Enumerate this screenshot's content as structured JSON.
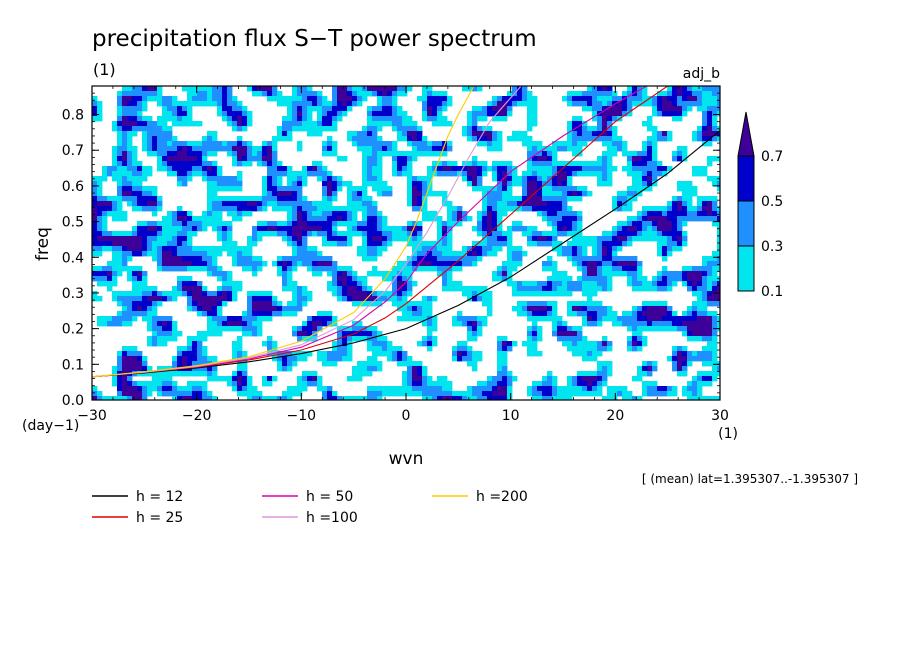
{
  "chart_data": {
    "type": "heatmap",
    "title": "precipitation flux S−T power spectrum",
    "subtitle_left": "(1)",
    "subtitle_right": "adj_b",
    "xlabel": "wvn",
    "ylabel": "freq",
    "x_unit": "(1)",
    "y_unit": "(day−1)",
    "xlim": [
      -30,
      30
    ],
    "ylim": [
      0,
      0.88
    ],
    "x_ticks": [
      -30,
      -20,
      -10,
      0,
      10,
      20,
      30
    ],
    "y_ticks": [
      0.0,
      0.1,
      0.2,
      0.3,
      0.4,
      0.5,
      0.6,
      0.7,
      0.8
    ],
    "y_tick_labels": [
      "0.0",
      "0.1",
      "0.2",
      "0.3",
      "0.4",
      "0.5",
      "0.6",
      "0.7",
      "0.8"
    ],
    "note": "[ (mean) lat=1.395307..-1.395307 ]",
    "colorbar": {
      "levels": [
        0.1,
        0.3,
        0.5,
        0.7
      ],
      "level_labels": [
        "0.1",
        "0.3",
        "0.5",
        "0.7"
      ],
      "colors": [
        "#00e5ee",
        "#1e90ff",
        "#0000cd",
        "#3d0099"
      ]
    },
    "series": [
      {
        "name": "h = 12",
        "color": "#000000",
        "x": [
          -30,
          -25,
          -20,
          -15,
          -10,
          -5,
          0,
          5,
          10,
          15,
          20,
          25,
          30
        ],
        "y": [
          0.065,
          0.076,
          0.09,
          0.107,
          0.13,
          0.16,
          0.2,
          0.265,
          0.345,
          0.44,
          0.535,
          0.635,
          0.755
        ]
      },
      {
        "name": "h = 25",
        "color": "#dd0000",
        "x": [
          -30,
          -25,
          -20,
          -15,
          -10,
          -5,
          -2,
          0,
          5,
          10,
          15,
          20,
          25
        ],
        "y": [
          0.065,
          0.077,
          0.092,
          0.112,
          0.14,
          0.185,
          0.23,
          0.27,
          0.39,
          0.52,
          0.65,
          0.78,
          0.88
        ]
      },
      {
        "name": "h = 50",
        "color": "#dd00aa",
        "x": [
          -30,
          -25,
          -20,
          -15,
          -10,
          -5,
          -2,
          0,
          2,
          5,
          10,
          15,
          20,
          23
        ],
        "y": [
          0.065,
          0.078,
          0.093,
          0.115,
          0.148,
          0.21,
          0.275,
          0.33,
          0.41,
          0.5,
          0.64,
          0.74,
          0.83,
          0.88
        ]
      },
      {
        "name": "h =100",
        "color": "#dd99dd",
        "x": [
          -30,
          -25,
          -20,
          -15,
          -10,
          -5,
          -2,
          0,
          2,
          4,
          6,
          8,
          11
        ],
        "y": [
          0.065,
          0.078,
          0.094,
          0.118,
          0.155,
          0.225,
          0.305,
          0.38,
          0.47,
          0.57,
          0.68,
          0.78,
          0.88
        ]
      },
      {
        "name": "h =200",
        "color": "#ffcc00",
        "x": [
          -30,
          -25,
          -20,
          -15,
          -10,
          -5,
          -2,
          0,
          1,
          2,
          3,
          4,
          5,
          6.5
        ],
        "y": [
          0.065,
          0.079,
          0.096,
          0.121,
          0.165,
          0.245,
          0.34,
          0.43,
          0.5,
          0.58,
          0.66,
          0.74,
          0.8,
          0.88
        ]
      }
    ]
  }
}
